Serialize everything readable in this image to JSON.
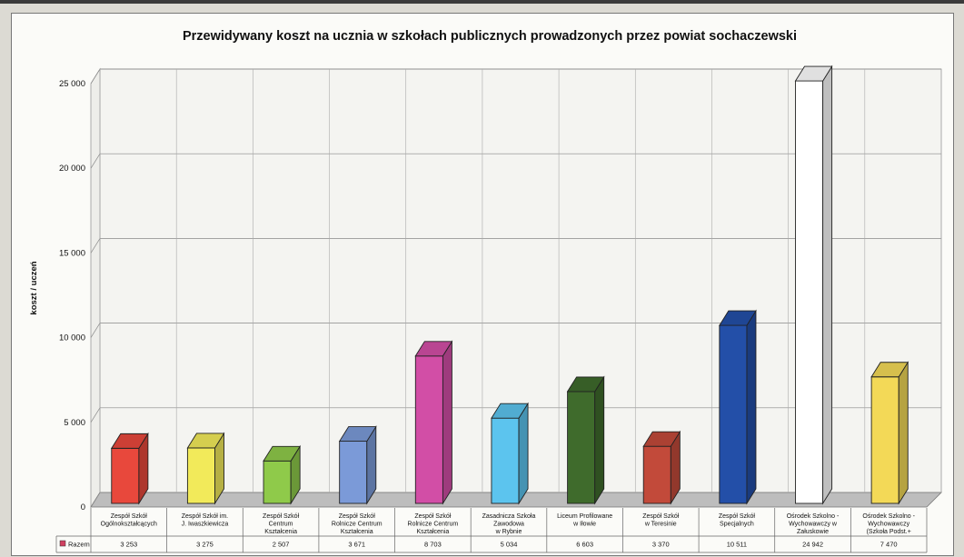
{
  "chart_data": {
    "type": "bar",
    "title": "Przewidywany koszt na ucznia w szkołach publicznych prowadzonych przez powiat sochaczewski",
    "ylabel": "koszt / uczeń",
    "xlabel": "",
    "ylim": [
      0,
      25000
    ],
    "yticks": [
      "0",
      "5 000",
      "10 000",
      "15 000",
      "20 000",
      "25 000"
    ],
    "ytick_values": [
      0,
      5000,
      10000,
      15000,
      20000,
      25000
    ],
    "grid": true,
    "three_d": true,
    "categories": [
      [
        "Zespół Szkół",
        "Ogólnokształcących"
      ],
      [
        "Zespół Szkół im.",
        "J. Iwaszkiewicza"
      ],
      [
        "Zespół Szkół",
        "Centrum",
        "Kształcenia"
      ],
      [
        "Zespół Szkół",
        "Rolnicze Centrum",
        "Kształcenia"
      ],
      [
        "Zespół Szkół",
        "Rolnicze Centrum",
        "Kształcenia"
      ],
      [
        "Zasadnicza Szkoła",
        "Zawodowa",
        "w Rybnie"
      ],
      [
        "Liceum Profilowane",
        "w Iłowie"
      ],
      [
        "Zespół Szkół",
        "w Teresinie"
      ],
      [
        "Zespół Szkół",
        "Specjalnych"
      ],
      [
        "Ośrodek Szkolno -",
        "Wychowawczy w",
        "Załuskowie"
      ],
      [
        "Ośrodek Szkolno -",
        "Wychowawczy",
        "(Szkoła Podst.+"
      ]
    ],
    "series": [
      {
        "name": "Razem",
        "values": [
          3253,
          3275,
          2507,
          3671,
          8703,
          5034,
          6603,
          3370,
          10511,
          24942,
          7470
        ],
        "labels": [
          "3 253",
          "3 275",
          "2 507",
          "3 671",
          "8 703",
          "5 034",
          "6 603",
          "3 370",
          "10 511",
          "24 942",
          "7 470"
        ]
      }
    ],
    "bar_colors": [
      "#e8483c",
      "#f2ea5a",
      "#8fca4a",
      "#7b9ad8",
      "#d24ea6",
      "#5cc4ee",
      "#3f6b2c",
      "#c24a3a",
      "#234fa8",
      "#ffffff",
      "#f3d957"
    ],
    "legend": {
      "placement": "bottom-left-table",
      "marker_color": "#d04060"
    }
  }
}
